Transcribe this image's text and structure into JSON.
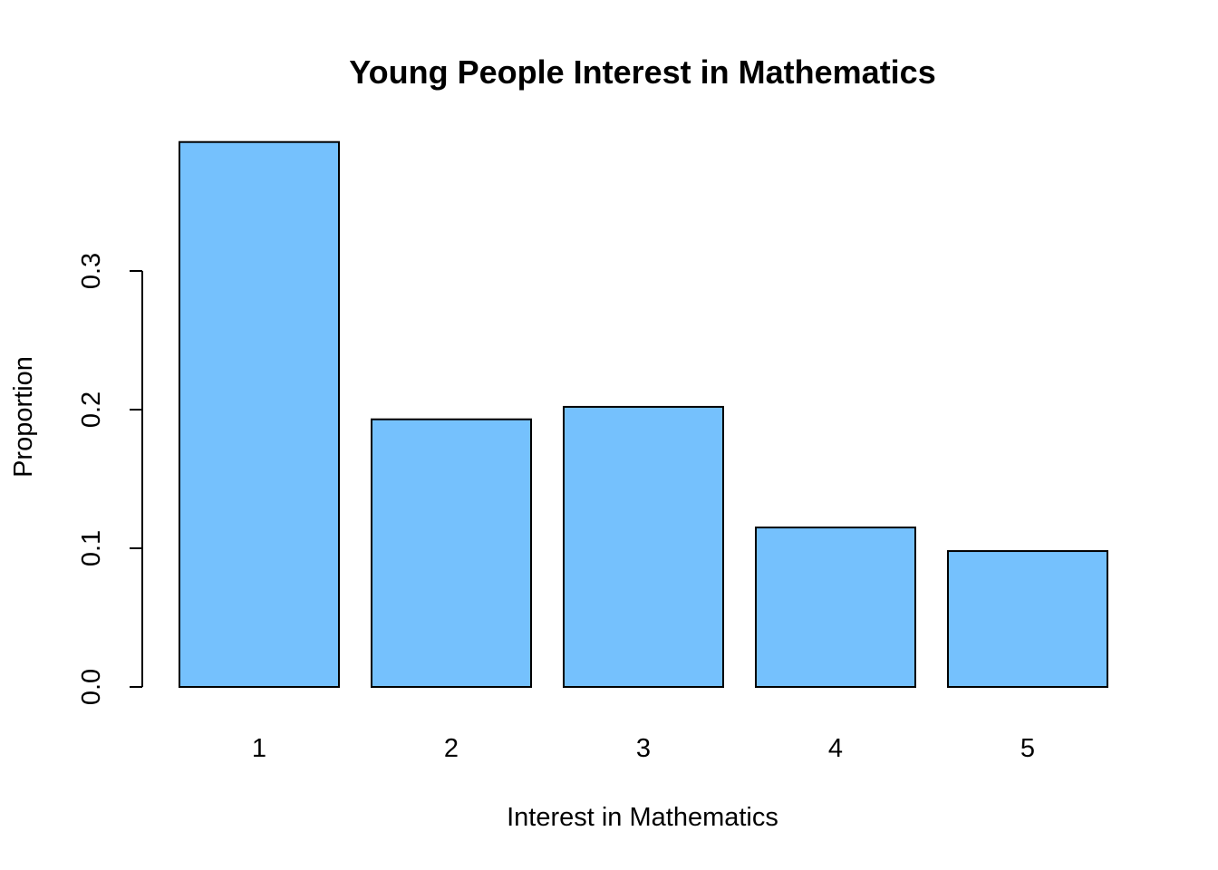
{
  "chart_data": {
    "type": "bar",
    "title": "Young People Interest in Mathematics",
    "xlabel": "Interest in Mathematics",
    "ylabel": "Proportion",
    "categories": [
      "1",
      "2",
      "3",
      "4",
      "5"
    ],
    "values": [
      0.393,
      0.193,
      0.202,
      0.115,
      0.098
    ],
    "ylim": [
      0,
      0.393
    ],
    "yticks": [
      0.0,
      0.1,
      0.2,
      0.3
    ],
    "ytick_labels": [
      "0.0",
      "0.1",
      "0.2",
      "0.3"
    ],
    "bar_color": "#75C1FD",
    "bar_border_color": "#000000",
    "grid": false,
    "legend": "none"
  }
}
